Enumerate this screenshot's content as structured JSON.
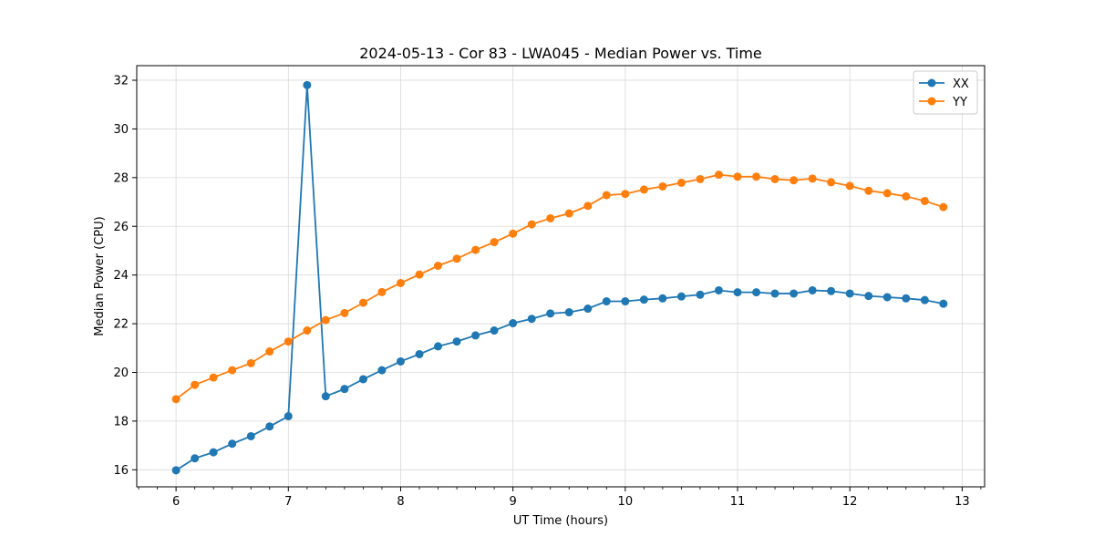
{
  "chart_data": {
    "type": "line",
    "title": "2024-05-13 - Cor 83 - LWA045 - Median Power vs. Time",
    "xlabel": "UT Time (hours)",
    "ylabel": "Median Power (CPU)",
    "xlim": [
      5.65,
      13.2
    ],
    "ylim": [
      15.3,
      32.6
    ],
    "xticks": [
      6,
      7,
      8,
      9,
      10,
      11,
      12,
      13
    ],
    "yticks": [
      16,
      18,
      20,
      22,
      24,
      26,
      28,
      30,
      32
    ],
    "grid": true,
    "legend_position": "top-right",
    "x": [
      6.0,
      6.167,
      6.333,
      6.5,
      6.667,
      6.833,
      7.0,
      7.167,
      7.333,
      7.5,
      7.667,
      7.833,
      8.0,
      8.167,
      8.333,
      8.5,
      8.667,
      8.833,
      9.0,
      9.167,
      9.333,
      9.5,
      9.667,
      9.833,
      10.0,
      10.167,
      10.333,
      10.5,
      10.667,
      10.833,
      11.0,
      11.167,
      11.333,
      11.5,
      11.667,
      11.833,
      12.0,
      12.167,
      12.333,
      12.5,
      12.667,
      12.833
    ],
    "series": [
      {
        "name": "XX",
        "color": "#1f77b4",
        "values": [
          15.98,
          16.47,
          16.72,
          17.07,
          17.38,
          17.78,
          18.2,
          31.8,
          19.02,
          19.32,
          19.72,
          20.09,
          20.45,
          20.75,
          21.07,
          21.27,
          21.52,
          21.72,
          22.02,
          22.2,
          22.42,
          22.47,
          22.62,
          22.92,
          22.92,
          22.99,
          23.04,
          23.12,
          23.19,
          23.37,
          23.29,
          23.29,
          23.24,
          23.24,
          23.37,
          23.34,
          23.24,
          23.14,
          23.09,
          23.04,
          22.97,
          22.82
        ]
      },
      {
        "name": "YY",
        "color": "#ff7f0e",
        "values": [
          18.9,
          19.49,
          19.79,
          20.09,
          20.38,
          20.86,
          21.27,
          21.72,
          22.15,
          22.44,
          22.86,
          23.3,
          23.67,
          24.02,
          24.38,
          24.67,
          25.03,
          25.35,
          25.7,
          26.08,
          26.33,
          26.53,
          26.84,
          27.28,
          27.33,
          27.51,
          27.64,
          27.79,
          27.94,
          28.12,
          28.04,
          28.04,
          27.94,
          27.89,
          27.96,
          27.81,
          27.66,
          27.46,
          27.36,
          27.23,
          27.04,
          26.79
        ]
      }
    ]
  }
}
